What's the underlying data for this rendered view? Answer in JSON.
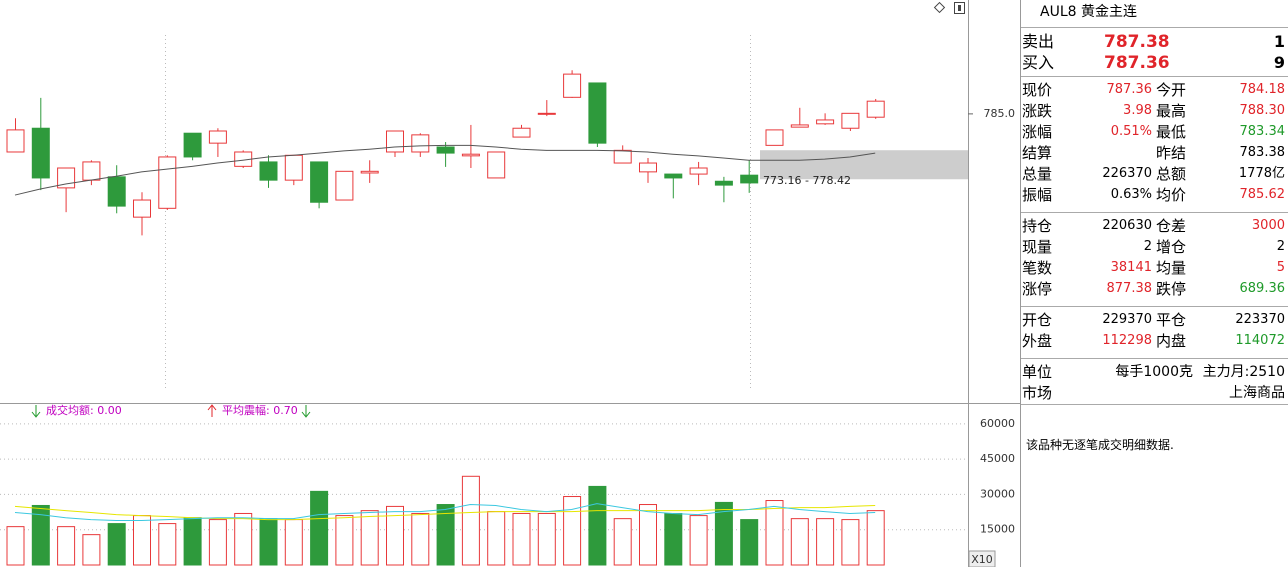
{
  "chart_data": [
    {
      "type": "candlestick",
      "up_color": "#e8383a",
      "down_color": "#2e9a3c",
      "ma_color": "#555555",
      "open": [
        778.1,
        782.4,
        771.6,
        773.0,
        773.6,
        766.3,
        767.9,
        781.5,
        779.7,
        775.5,
        776.3,
        773.0,
        776.3,
        769.4,
        774.3,
        778.1,
        778.1,
        779.0,
        777.4,
        773.4,
        780.8,
        785.0,
        788.0,
        790.6,
        776.1,
        774.5,
        774.1,
        774.1,
        772.8,
        773.9,
        779.3,
        782.6,
        783.2,
        782.4,
        784.4
      ],
      "high": [
        784.2,
        787.9,
        775.2,
        776.6,
        775.7,
        770.8,
        777.5,
        781.5,
        782.4,
        778.4,
        777.5,
        777.5,
        776.3,
        774.6,
        776.6,
        781.9,
        781.5,
        779.9,
        783.0,
        778.1,
        783.0,
        787.5,
        792.9,
        790.6,
        779.3,
        777.0,
        774.1,
        776.3,
        773.6,
        776.6,
        782.1,
        786.1,
        785.1,
        785.1,
        787.7
      ],
      "low": [
        778.1,
        771.2,
        767.2,
        772.1,
        767.0,
        763.0,
        767.6,
        776.6,
        777.2,
        775.2,
        771.6,
        772.1,
        767.9,
        769.4,
        772.5,
        777.2,
        777.2,
        775.4,
        775.2,
        773.4,
        780.8,
        784.6,
        787.9,
        779.0,
        776.1,
        772.5,
        769.7,
        772.1,
        769.0,
        770.7,
        779.3,
        782.6,
        783.0,
        781.9,
        784.1
      ],
      "close": [
        782.1,
        773.4,
        775.2,
        776.3,
        768.3,
        769.4,
        777.2,
        777.2,
        781.9,
        778.1,
        773.0,
        777.5,
        769.0,
        774.6,
        774.6,
        781.9,
        781.2,
        777.9,
        777.7,
        778.1,
        782.4,
        785.1,
        792.2,
        779.7,
        778.4,
        776.1,
        773.4,
        775.2,
        772.1,
        772.5,
        782.1,
        783.0,
        783.9,
        785.1,
        787.3
      ],
      "ma": [
        770.3,
        771.4,
        772.3,
        773.0,
        773.7,
        774.5,
        775.0,
        775.5,
        776.1,
        776.6,
        777.2,
        777.5,
        777.9,
        778.3,
        778.6,
        779.0,
        779.2,
        779.3,
        779.3,
        779.0,
        778.6,
        778.4,
        778.4,
        778.4,
        778.3,
        778.1,
        777.7,
        777.4,
        777.0,
        776.6,
        776.6,
        776.6,
        776.8,
        777.2,
        777.9
      ],
      "zone": {
        "low": 773.16,
        "high": 778.42,
        "label": "773.16 - 778.42",
        "color": "#c8c8c8"
      },
      "ylim": [
        735,
        802
      ],
      "yticks": [
        {
          "value": 785,
          "label": "785.0"
        }
      ]
    },
    {
      "type": "volume",
      "up_color": "#e8383a",
      "down_color": "#2e9a3c",
      "legend": [
        {
          "text": "成交均额: 0.00"
        },
        {
          "text": "平均震幅: 0.70"
        }
      ],
      "values": [
        16300,
        25300,
        16300,
        12900,
        17600,
        21000,
        17600,
        20100,
        19300,
        21900,
        19700,
        19300,
        31300,
        21000,
        23100,
        24900,
        21900,
        25700,
        37700,
        22700,
        21900,
        21900,
        29100,
        33400,
        19700,
        25700,
        21900,
        21000,
        26600,
        19300,
        27400,
        19700,
        19700,
        19300,
        23100
      ],
      "lines": [
        {
          "color": "#e6e600",
          "values": [
            24900,
            24000,
            23100,
            22300,
            21400,
            21000,
            20600,
            20100,
            19700,
            19700,
            19300,
            19300,
            19700,
            20100,
            20600,
            21000,
            21400,
            21900,
            22300,
            22700,
            22700,
            22700,
            22700,
            23100,
            23100,
            23100,
            23100,
            23100,
            23600,
            23600,
            24000,
            24400,
            24400,
            24900,
            25300
          ]
        },
        {
          "color": "#3cc8e0",
          "values": [
            22300,
            21400,
            20100,
            19300,
            18900,
            18900,
            19300,
            19700,
            20100,
            20100,
            19700,
            19700,
            21400,
            21900,
            22300,
            22700,
            22700,
            23600,
            25700,
            25300,
            23600,
            22700,
            23600,
            26100,
            24400,
            22700,
            21900,
            21400,
            22700,
            23600,
            24900,
            23600,
            22700,
            21900,
            22300
          ]
        }
      ],
      "ylim": [
        0,
        68000
      ],
      "yticks": [
        15000,
        30000,
        45000,
        60000
      ],
      "scale_label": "X10"
    }
  ],
  "quote_panel": {
    "title": "AUL8 黄金主连",
    "bid_ask": [
      {
        "label": "卖出",
        "price": "787.38",
        "qty": "1"
      },
      {
        "label": "买入",
        "price": "787.36",
        "qty": "9"
      }
    ],
    "groups": [
      [
        {
          "l1": "现价",
          "v1": "787.36",
          "c1": "#e0242a",
          "l2": "今开",
          "v2": "784.18",
          "c2": "#e0242a"
        },
        {
          "l1": "涨跌",
          "v1": "3.98",
          "c1": "#e0242a",
          "l2": "最高",
          "v2": "788.30",
          "c2": "#e0242a"
        },
        {
          "l1": "涨幅",
          "v1": "0.51%",
          "c1": "#e0242a",
          "l2": "最低",
          "v2": "783.34",
          "c2": "#1f9a2a"
        },
        {
          "l1": "结算",
          "l2": "昨结",
          "v2": "783.38",
          "c2": "#000000"
        },
        {
          "l1": "总量",
          "v1": "226370",
          "c1": "#000000",
          "l2": "总额",
          "v2": "1778亿",
          "c2": "#000000"
        },
        {
          "l1": "振幅",
          "v1": "0.63%",
          "c1": "#000000",
          "l2": "均价",
          "v2": "785.62",
          "c2": "#e0242a"
        }
      ],
      [
        {
          "l1": "持仓",
          "v1": "220630",
          "c1": "#000000",
          "l2": "仓差",
          "v2": "3000",
          "c2": "#e0242a"
        },
        {
          "l1": "现量",
          "v1": "2",
          "c1": "#000000",
          "l2": "增仓",
          "v2": "2",
          "c2": "#000000"
        },
        {
          "l1": "笔数",
          "v1": "38141",
          "c1": "#e0242a",
          "l2": "均量",
          "v2": "5",
          "c2": "#e0242a"
        },
        {
          "l1": "涨停",
          "v1": "877.38",
          "c1": "#e0242a",
          "l2": "跌停",
          "v2": "689.36",
          "c2": "#1f9a2a"
        }
      ],
      [
        {
          "l1": "开仓",
          "v1": "229370",
          "c1": "#000000",
          "l2": "平仓",
          "v2": "223370",
          "c2": "#000000"
        },
        {
          "l1": "外盘",
          "v1": "112298",
          "c1": "#e0242a",
          "l2": "内盘",
          "v2": "114072",
          "c2": "#1f9a2a"
        }
      ]
    ],
    "info": [
      [
        "单位",
        "每手1000克",
        "主力月:2510"
      ],
      [
        "市场",
        "上海商品"
      ]
    ],
    "note": "该品种无逐笔成交明细数据."
  }
}
